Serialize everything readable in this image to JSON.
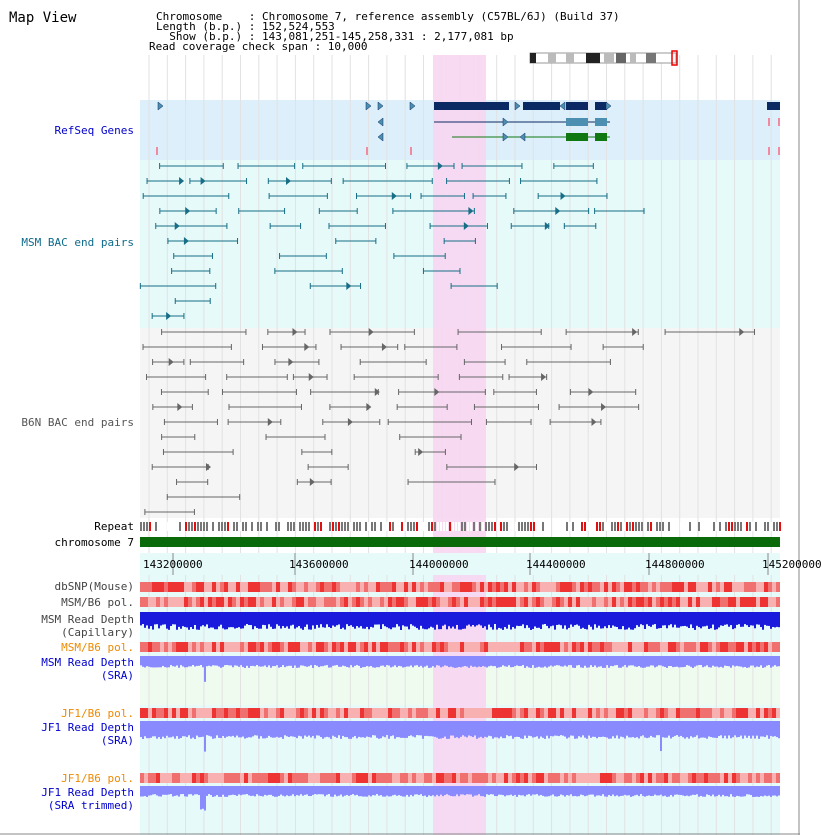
{
  "page": {
    "title": "Map View",
    "info": {
      "line1": "Chromosome    : Chromosome 7, reference assembly (C57BL/6J) (Build 37)",
      "line2": "Length (b.p.) : 152,524,553",
      "line3": "  Show (b.p.) : 143,081,251-145,258,331 : 2,177,081 bp",
      "line4": "Read coverage check span : 10,000"
    }
  },
  "tracks": {
    "refseq": "RefSeq Genes",
    "msm_bac": "MSM BAC end pairs",
    "b6n_bac": "B6N BAC end pairs",
    "repeat": "Repeat",
    "chromosome": "chromosome 7",
    "dbsnp": "dbSNP(Mouse)",
    "msm_pol1": "MSM/B6 pol.",
    "msm_depth_cap_1": "MSM Read Depth",
    "msm_depth_cap_2": "(Capillary)",
    "msm_pol2": "MSM/B6 pol.",
    "msm_depth_sra_1": "MSM Read Depth",
    "msm_depth_sra_2": "(SRA)",
    "jf1_pol1": "JF1/B6 pol.",
    "jf1_depth_sra_1": "JF1 Read Depth",
    "jf1_depth_sra_2": "(SRA)",
    "jf1_pol2": "JF1/B6 pol.",
    "jf1_depth_trim_1": "JF1 Read Depth",
    "jf1_depth_trim_2": "(SRA trimmed)"
  },
  "axis": {
    "ticks": [
      "143200000",
      "143600000",
      "144000000",
      "144400000",
      "144800000",
      "145200000"
    ]
  },
  "colors": {
    "refseq_label": "#0000cc",
    "msm_label": "#0e6a8a",
    "b6n_label": "#555555",
    "orange_label": "#ee8a00",
    "blue_label": "#0000cc",
    "highlight": "#f7d6f2",
    "gene_dark": "#0b2a63",
    "gene_mid": "#4d8fb0",
    "gene_green": "#117711",
    "chrom_green": "#0a6a0a",
    "msm_feature": "#176e86",
    "b6n_feature": "#666666",
    "depth_dark": "#1a1add",
    "depth_light": "#8a8aff"
  }
}
